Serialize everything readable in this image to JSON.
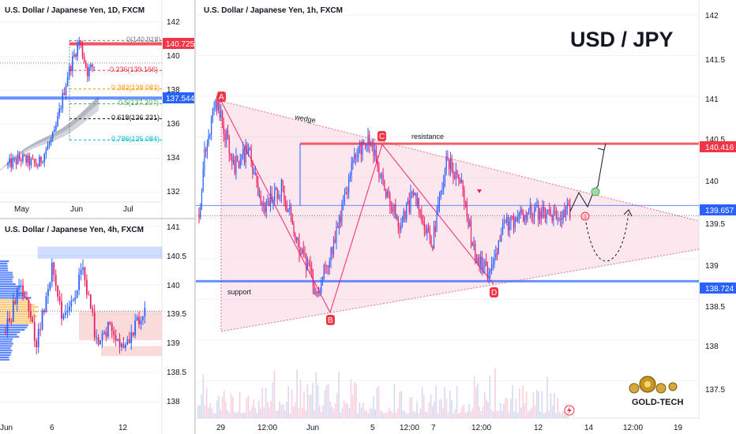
{
  "header": {
    "big_title": "USD / JPY"
  },
  "brand": {
    "name": "GOLD-TECH"
  },
  "chart_data": [
    {
      "type": "candlestick",
      "title": "U.S. Dollar / Japanese Yen, 1D, FXCM",
      "x_ticks": [
        "May",
        "Jun",
        "Jul"
      ],
      "y_ticks": [
        142.0,
        140.0,
        138.0,
        136.0,
        134.0,
        132.0
      ],
      "ylim": [
        130.4,
        142.9
      ],
      "price_badges": [
        {
          "value": "140.725",
          "color": "#f23645"
        },
        {
          "value": "137.544",
          "color": "#2962ff"
        }
      ],
      "fib_levels": [
        {
          "label": "0(140.918)",
          "value": 140.918,
          "color": "#787b86"
        },
        {
          "label": "0.236(139.166)",
          "value": 139.166,
          "color": "#f23645"
        },
        {
          "label": "0.382(138.083)",
          "value": 138.083,
          "color": "#ff9800"
        },
        {
          "label": "0.5(137.207)",
          "value": 137.207,
          "color": "#4caf50"
        },
        {
          "label": "0.618(136.331)",
          "value": 136.331,
          "color": "#131722"
        },
        {
          "label": "0.786(135.084)",
          "value": 135.084,
          "color": "#00bcd4"
        }
      ]
    },
    {
      "type": "candlestick",
      "title": "U.S. Dollar / Japanese Yen, 4h, FXCM",
      "x_ticks": [
        "Jun",
        "6",
        "12"
      ],
      "y_ticks": [
        141.0,
        140.5,
        140.0,
        139.5,
        139.0,
        138.5,
        138.0
      ],
      "ylim": [
        137.85,
        141.35
      ]
    },
    {
      "type": "candlestick",
      "title": "U.S. Dollar / Japanese Yen, 1h, FXCM",
      "x_ticks": [
        "29",
        "12:00",
        "Jun",
        "5",
        "12:00",
        "7",
        "12:00",
        "12",
        "14",
        "12:00",
        "19"
      ],
      "y_ticks": [
        142.0,
        141.5,
        141.0,
        140.5,
        140.0,
        139.5,
        139.0,
        138.5,
        138.0,
        137.5
      ],
      "ylim": [
        137.2,
        142.25
      ],
      "price_badges": [
        {
          "value": "140.416",
          "color": "#f23645"
        },
        {
          "value": "139.657",
          "color": "#2962ff"
        },
        {
          "value": "138.724",
          "color": "#2962ff"
        }
      ],
      "points": [
        {
          "label": "A",
          "value": 140.95
        },
        {
          "label": "B",
          "value": 138.56
        },
        {
          "label": "C",
          "value": 140.48
        },
        {
          "label": "D",
          "value": 138.82
        }
      ],
      "annotations": [
        "wedge",
        "resistance",
        "support"
      ],
      "markers": [
        "1"
      ]
    }
  ]
}
